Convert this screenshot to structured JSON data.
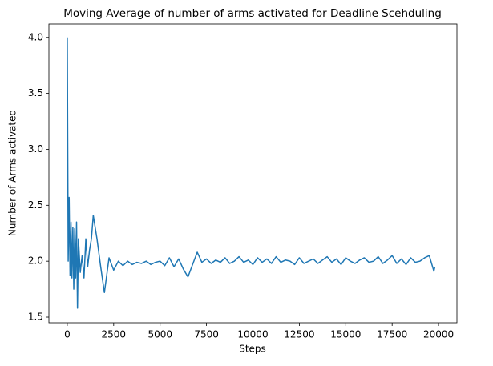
{
  "chart_data": {
    "type": "line",
    "title": "Moving Average of number of arms activated for Deadline Scehduling",
    "x_label": "Steps",
    "y_label": "Number of Arms activated",
    "x": [
      0,
      50,
      100,
      150,
      200,
      250,
      300,
      350,
      400,
      450,
      500,
      550,
      600,
      700,
      800,
      900,
      1000,
      1100,
      1200,
      1300,
      1400,
      1600,
      1800,
      2000,
      2250,
      2500,
      2750,
      3000,
      3250,
      3500,
      3750,
      4000,
      4250,
      4500,
      4750,
      5000,
      5250,
      5500,
      5750,
      6000,
      6250,
      6500,
      6750,
      7000,
      7250,
      7500,
      7750,
      8000,
      8250,
      8500,
      8750,
      9000,
      9250,
      9500,
      9750,
      10000,
      10250,
      10500,
      10750,
      11000,
      11250,
      11500,
      11750,
      12000,
      12250,
      12500,
      12750,
      13000,
      13250,
      13500,
      13750,
      14000,
      14250,
      14500,
      14750,
      15000,
      15250,
      15500,
      15750,
      16000,
      16250,
      16500,
      16750,
      17000,
      17250,
      17500,
      17750,
      18000,
      18250,
      18500,
      18750,
      19000,
      19250,
      19500,
      19750,
      19800
    ],
    "series": [
      {
        "color": "#1f77b4",
        "values": [
          4.0,
          2.0,
          2.57,
          1.87,
          2.35,
          1.85,
          2.3,
          1.75,
          2.29,
          1.85,
          2.35,
          1.58,
          2.2,
          1.9,
          2.05,
          1.85,
          2.2,
          1.95,
          2.1,
          2.2,
          2.41,
          2.2,
          1.95,
          1.72,
          2.03,
          1.92,
          2.0,
          1.96,
          2.0,
          1.97,
          1.99,
          1.98,
          2.0,
          1.97,
          1.99,
          2.0,
          1.96,
          2.03,
          1.95,
          2.02,
          1.93,
          1.86,
          1.97,
          2.08,
          1.99,
          2.02,
          1.98,
          2.01,
          1.99,
          2.03,
          1.98,
          2.0,
          2.04,
          1.99,
          2.01,
          1.97,
          2.03,
          1.99,
          2.02,
          1.98,
          2.04,
          1.99,
          2.01,
          2.0,
          1.97,
          2.03,
          1.98,
          2.0,
          2.02,
          1.98,
          2.01,
          2.04,
          1.99,
          2.02,
          1.97,
          2.03,
          2.0,
          1.98,
          2.01,
          2.03,
          1.99,
          2.0,
          2.04,
          1.98,
          2.01,
          2.05,
          1.98,
          2.02,
          1.97,
          2.03,
          1.99,
          2.0,
          2.03,
          2.05,
          1.91,
          1.95
        ]
      }
    ],
    "xlim": [
      -990,
      20990
    ],
    "ylim": [
      1.45,
      4.12
    ],
    "xticks": [
      0,
      2500,
      5000,
      7500,
      10000,
      12500,
      15000,
      17500,
      20000
    ],
    "yticks": [
      1.5,
      {
        "value": 2.0,
        "label": "2.0"
      },
      2.5,
      {
        "value": 3.0,
        "label": "3.0"
      },
      3.5,
      {
        "value": 4.0,
        "label": "4.0"
      }
    ],
    "grid": false
  }
}
